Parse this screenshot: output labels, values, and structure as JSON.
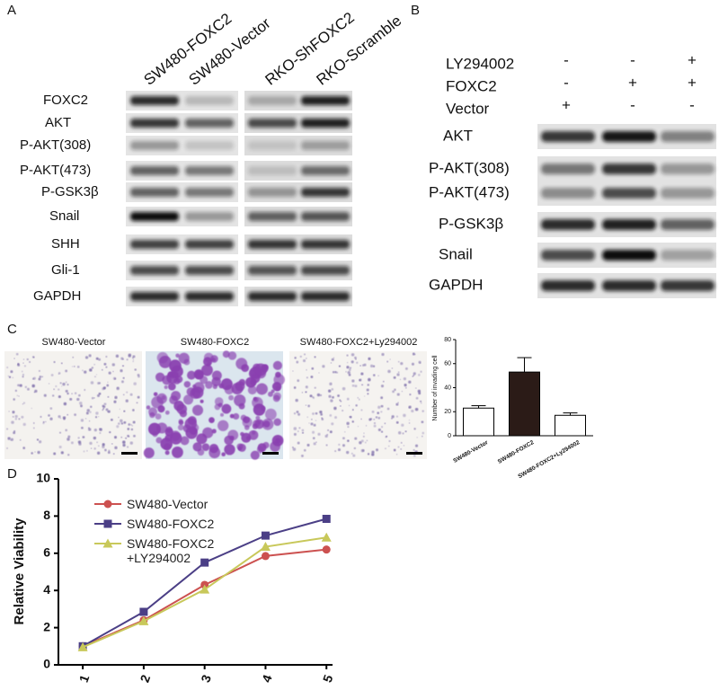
{
  "panel_labels": [
    "A",
    "B",
    "C",
    "D"
  ],
  "blot_a": {
    "columns": [
      "SW480-FOXC2",
      "SW480-Vector",
      "RKO-ShFOXC2",
      "RKO-Scramble"
    ],
    "rows": [
      "FOXC2",
      "AKT",
      "P-AKT(308)",
      "P-AKT(473)",
      "P-GSK3β",
      "Snail",
      "SHH",
      "Gli-1",
      "GAPDH"
    ]
  },
  "blot_b": {
    "treatments": [
      {
        "name": "LY294002",
        "signs": [
          "-",
          "-",
          "+"
        ]
      },
      {
        "name": "FOXC2",
        "signs": [
          "-",
          "+",
          "+"
        ]
      },
      {
        "name": "Vector",
        "signs": [
          "+",
          "-",
          "-"
        ]
      }
    ],
    "rows": [
      "AKT",
      "P-AKT(308)",
      "P-AKT(473)",
      "P-GSK3β",
      "Snail",
      "GAPDH"
    ]
  },
  "micrographs": [
    "SW480-Vector",
    "SW480-FOXC2",
    "SW480-FOXC2+Ly294002"
  ],
  "chart_data": [
    {
      "type": "bar",
      "y_label": "Number of invading cell",
      "categories": [
        "SW480-Vector",
        "SW480-FOXC2",
        "SW480-FOXC2+Ly294002"
      ],
      "values": [
        23,
        53,
        17
      ],
      "errors": [
        2,
        12,
        2
      ],
      "colors": [
        "#ffffff",
        "#2b1b17",
        "#ffffff"
      ],
      "ylim": [
        0,
        80
      ],
      "yticks": [
        0,
        20,
        40,
        60,
        80
      ]
    },
    {
      "type": "line",
      "y_label": "Relative Viability",
      "x": [
        1,
        2,
        3,
        4,
        5
      ],
      "xlim": [
        0.6,
        5.1
      ],
      "xticks": [
        1,
        2,
        3,
        4,
        5
      ],
      "ylim": [
        0,
        10
      ],
      "yticks": [
        0,
        2,
        4,
        6,
        8,
        10
      ],
      "series": [
        {
          "name": "SW480-Vector",
          "color": "#cc5150",
          "marker": "circle",
          "values": [
            1,
            2.4,
            4.3,
            5.85,
            6.2
          ]
        },
        {
          "name": "SW480-FOXC2",
          "color": "#4b3f86",
          "marker": "square",
          "values": [
            1,
            2.85,
            5.5,
            6.95,
            7.85
          ]
        },
        {
          "name": "SW480-FOXC2 +LY294002",
          "color": "#c8c85a",
          "marker": "triangle",
          "values": [
            0.95,
            2.35,
            4.05,
            6.35,
            6.85
          ]
        }
      ]
    }
  ]
}
